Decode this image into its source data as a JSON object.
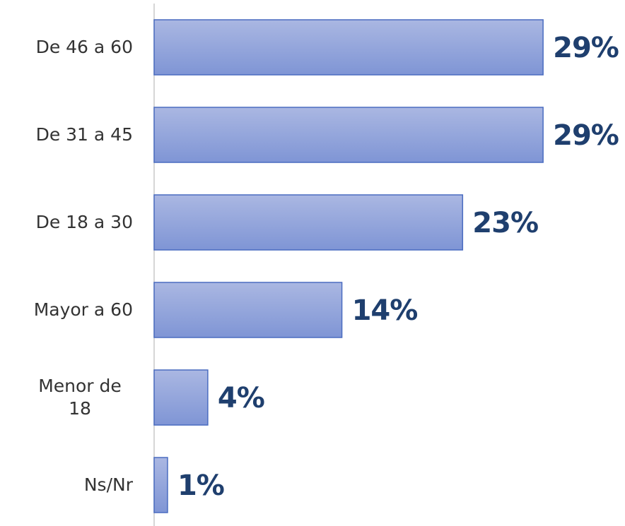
{
  "chart_data": {
    "type": "bar",
    "orientation": "horizontal",
    "categories": [
      "De 46 a 60",
      "De 31 a 45",
      "De 18 a 30",
      "Mayor a 60",
      "Menor de 18",
      "Ns/Nr"
    ],
    "values": [
      29,
      29,
      23,
      14,
      4,
      1
    ],
    "value_labels": [
      "29%",
      "29%",
      "23%",
      "14%",
      "4%",
      "1%"
    ],
    "color": "#8ea0da"
  }
}
